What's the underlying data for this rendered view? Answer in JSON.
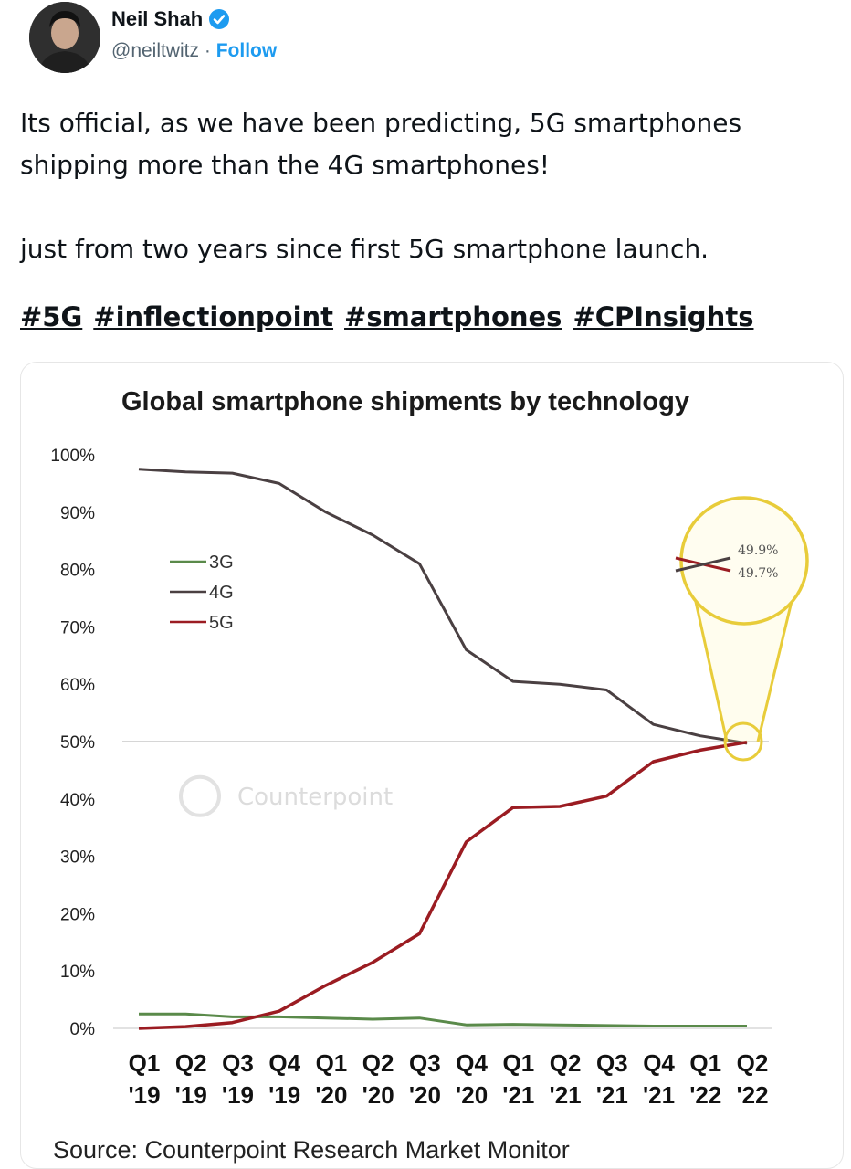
{
  "tweet": {
    "author_name": "Neil Shah",
    "handle": "@neiltwitz",
    "separator": "·",
    "follow_label": "Follow",
    "text_line1": "Its official, as we have been predicting, 5G smartphones shipping more than the 4G smartphones!",
    "text_line2": "just from two years since first 5G smartphone launch.",
    "hashtags": [
      "#5G",
      "#inflectionpoint",
      "#smartphones",
      "#CPInsights"
    ]
  },
  "chart_data": {
    "type": "line",
    "title": "Global smartphone shipments by technology",
    "xlabel": "",
    "ylabel": "",
    "ylim": [
      0,
      100
    ],
    "yticks": [
      "0%",
      "10%",
      "20%",
      "30%",
      "40%",
      "50%",
      "60%",
      "70%",
      "80%",
      "90%",
      "100%"
    ],
    "categories": [
      [
        "Q1",
        "'19"
      ],
      [
        "Q2",
        "'19"
      ],
      [
        "Q3",
        "'19"
      ],
      [
        "Q4",
        "'19"
      ],
      [
        "Q1",
        "'20"
      ],
      [
        "Q2",
        "'20"
      ],
      [
        "Q3",
        "'20"
      ],
      [
        "Q4",
        "'20"
      ],
      [
        "Q1",
        "'21"
      ],
      [
        "Q2",
        "'21"
      ],
      [
        "Q3",
        "'21"
      ],
      [
        "Q4",
        "'21"
      ],
      [
        "Q1",
        "'22"
      ],
      [
        "Q2",
        "'22"
      ]
    ],
    "series": [
      {
        "name": "3G",
        "color": "#5a8a4a",
        "values": [
          2.5,
          2.5,
          2.0,
          2.0,
          1.8,
          1.6,
          1.8,
          0.6,
          0.7,
          0.6,
          0.5,
          0.4,
          0.4,
          0.4
        ]
      },
      {
        "name": "4G",
        "color": "#4a4042",
        "values": [
          97.5,
          97.0,
          96.8,
          95.0,
          90.0,
          86.0,
          81.0,
          66.0,
          60.5,
          60.0,
          59.0,
          53.0,
          51.0,
          49.7
        ]
      },
      {
        "name": "5G",
        "color": "#9b1c22",
        "values": [
          0.0,
          0.3,
          1.0,
          3.0,
          7.5,
          11.5,
          16.5,
          32.5,
          38.5,
          38.7,
          40.5,
          46.5,
          48.5,
          49.9
        ]
      }
    ],
    "reference_line": 50,
    "callout_labels": [
      "49.9%",
      "49.7%"
    ],
    "watermark": "Counterpoint",
    "source": "Source: Counterpoint Research Market Monitor"
  }
}
